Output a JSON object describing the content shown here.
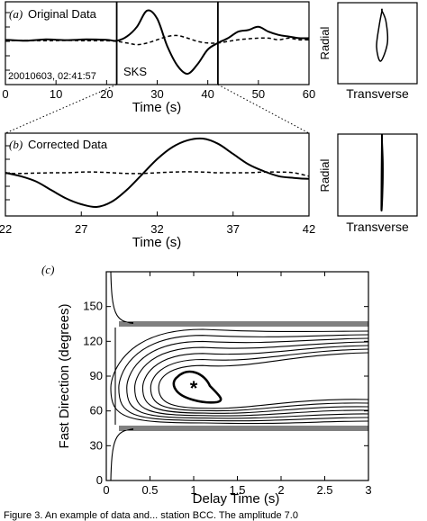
{
  "chart_data": [
    {
      "panel": "(a)",
      "type": "line",
      "title": "Original Data",
      "timestamp": "20010603, 02:41:57",
      "phase_label": "SKS",
      "xlabel": "Time (s)",
      "xlim": [
        0,
        60
      ],
      "x_ticks": [
        "0",
        "10",
        "20",
        "30",
        "40",
        "50",
        "60"
      ],
      "window_markers_s": [
        22,
        42
      ],
      "series": [
        {
          "style": "solid",
          "x": [
            0,
            4,
            8,
            12,
            16,
            20,
            22,
            24,
            26,
            28,
            30,
            32,
            34,
            36,
            38,
            40,
            42,
            44,
            46,
            48,
            50,
            52,
            54,
            56,
            58,
            60
          ],
          "y": [
            0.05,
            0.02,
            0.06,
            0.04,
            0.06,
            0.05,
            0.02,
            0.15,
            0.45,
            0.95,
            0.7,
            -0.15,
            -0.75,
            -1.0,
            -0.7,
            -0.25,
            -0.05,
            0.1,
            0.3,
            0.35,
            0.45,
            0.3,
            0.2,
            0.15,
            0.1,
            0.1
          ]
        },
        {
          "style": "dashed",
          "x": [
            0,
            4,
            8,
            12,
            16,
            20,
            22,
            24,
            26,
            28,
            30,
            32,
            34,
            36,
            38,
            40,
            42,
            44,
            46,
            48,
            50,
            52,
            54,
            56,
            58,
            60
          ],
          "y": [
            0.02,
            0.03,
            0.02,
            0.03,
            0.02,
            0.02,
            0.0,
            -0.05,
            -0.1,
            -0.05,
            0.05,
            0.15,
            0.18,
            0.1,
            0.0,
            -0.05,
            -0.05,
            0.0,
            0.05,
            0.08,
            0.1,
            0.1,
            0.05,
            0.1,
            0.05,
            0.05
          ]
        }
      ]
    },
    {
      "panel": "(a) inset",
      "type": "scatter",
      "xlabel": "Transverse",
      "ylabel": "Radial",
      "description_points": {
        "x": [
          0.0,
          0.15,
          0.2,
          -0.05,
          -0.2,
          -0.1,
          0.0
        ],
        "y": [
          0.9,
          0.6,
          0.0,
          -0.5,
          -0.1,
          0.5,
          0.9
        ]
      }
    },
    {
      "panel": "(b)",
      "type": "line",
      "title": "Corrected Data",
      "xlabel": "Time (s)",
      "xlim": [
        22,
        42
      ],
      "x_ticks": [
        "22",
        "27",
        "32",
        "37",
        "42"
      ],
      "series": [
        {
          "style": "solid",
          "x": [
            22,
            23,
            24,
            25,
            26,
            27,
            28,
            29,
            30,
            31,
            32,
            33,
            34,
            35,
            36,
            37,
            38,
            39,
            40,
            41,
            42
          ],
          "y": [
            0.0,
            -0.1,
            -0.25,
            -0.5,
            -0.75,
            -0.92,
            -1.0,
            -0.85,
            -0.5,
            -0.05,
            0.4,
            0.75,
            0.95,
            1.0,
            0.85,
            0.55,
            0.25,
            0.05,
            -0.1,
            -0.15,
            -0.18
          ]
        },
        {
          "style": "dashed",
          "x": [
            22,
            23,
            24,
            25,
            26,
            27,
            28,
            29,
            30,
            31,
            32,
            33,
            34,
            35,
            36,
            37,
            38,
            39,
            40,
            41,
            42
          ],
          "y": [
            -0.02,
            -0.02,
            -0.01,
            0.0,
            0.0,
            0.02,
            0.02,
            0.0,
            -0.02,
            -0.02,
            0.0,
            0.02,
            0.03,
            0.02,
            0.0,
            0.0,
            0.0,
            0.02,
            0.02,
            0.0,
            -0.1
          ]
        }
      ]
    },
    {
      "panel": "(b) inset",
      "type": "scatter",
      "xlabel": "Transverse",
      "ylabel": "Radial",
      "description_points": {
        "x": [
          0.0,
          0.03,
          0.02,
          -0.02,
          0.0
        ],
        "y": [
          0.9,
          0.3,
          -0.4,
          -0.9,
          0.9
        ]
      }
    },
    {
      "panel": "(c)",
      "type": "contour",
      "xlabel": "Delay Time (s)",
      "ylabel": "Fast Direction (degrees)",
      "xlim": [
        0,
        3
      ],
      "ylim": [
        0,
        180
      ],
      "x_ticks": [
        "0",
        "0.5",
        "1",
        "1.5",
        "2",
        "2.5",
        "3"
      ],
      "y_ticks": [
        "0",
        "30",
        "60",
        "90",
        "120",
        "150"
      ],
      "best_fit": {
        "delay_s": 1.0,
        "fast_direction_deg": 80,
        "marker": "*"
      },
      "horizontal_asymptotes_deg": [
        45,
        135
      ]
    }
  ],
  "labels": {
    "panel_a": "(a)",
    "panel_b": "(b)",
    "panel_c": "(c)",
    "caption_fragment": "Figure 3. An example of data and... station BCC. The amplitude 7.0"
  }
}
